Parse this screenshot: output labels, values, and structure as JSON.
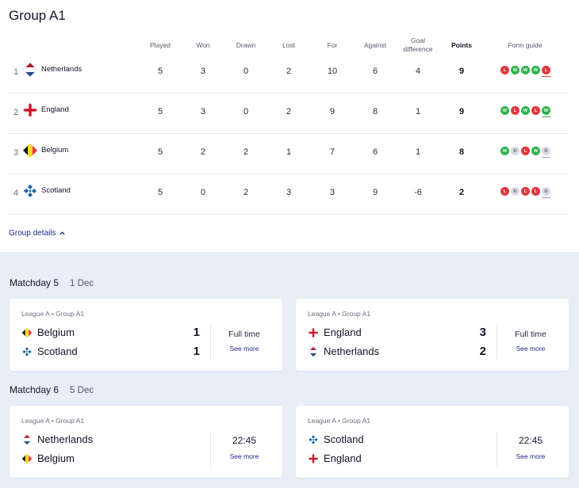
{
  "group": {
    "title": "Group A1",
    "headers": {
      "played": "Played",
      "won": "Won",
      "drawn": "Drawn",
      "lost": "Lost",
      "for": "For",
      "against": "Against",
      "gd_line1": "Goal",
      "gd_line2": "difference",
      "points": "Points",
      "form": "Form guide"
    },
    "rows": [
      {
        "pos": "1",
        "team": "Netherlands",
        "played": "5",
        "won": "3",
        "drawn": "0",
        "lost": "2",
        "for": "10",
        "against": "6",
        "gd": "4",
        "points": "9",
        "form": [
          "L",
          "W",
          "W",
          "W",
          "L"
        ]
      },
      {
        "pos": "2",
        "team": "England",
        "played": "5",
        "won": "3",
        "drawn": "0",
        "lost": "2",
        "for": "9",
        "against": "8",
        "gd": "1",
        "points": "9",
        "form": [
          "W",
          "L",
          "W",
          "L",
          "W"
        ]
      },
      {
        "pos": "3",
        "team": "Belgium",
        "played": "5",
        "won": "2",
        "drawn": "2",
        "lost": "1",
        "for": "7",
        "against": "6",
        "gd": "1",
        "points": "8",
        "form": [
          "W",
          "D",
          "L",
          "W",
          "D"
        ]
      },
      {
        "pos": "4",
        "team": "Scotland",
        "played": "5",
        "won": "0",
        "drawn": "2",
        "lost": "3",
        "for": "3",
        "against": "9",
        "gd": "-6",
        "points": "2",
        "form": [
          "L",
          "D",
          "L",
          "L",
          "D"
        ]
      }
    ],
    "details_label": "Group details"
  },
  "matchdays": [
    {
      "label": "Matchday 5",
      "date": "1 Dec",
      "matches": [
        {
          "league": "League A • Group A1",
          "home": "Belgium",
          "away": "Scotland",
          "home_score": "1",
          "away_score": "1",
          "status": "Full time",
          "see_more": "See more"
        },
        {
          "league": "League A • Group A1",
          "home": "England",
          "away": "Netherlands",
          "home_score": "3",
          "away_score": "2",
          "status": "Full time",
          "see_more": "See more"
        }
      ]
    },
    {
      "label": "Matchday 6",
      "date": "5 Dec",
      "matches": [
        {
          "league": "League A • Group A1",
          "home": "Netherlands",
          "away": "Belgium",
          "home_score": "",
          "away_score": "",
          "status": "22:45",
          "see_more": "See more"
        },
        {
          "league": "League A • Group A1",
          "home": "Scotland",
          "away": "England",
          "home_score": "",
          "away_score": "",
          "status": "22:45",
          "see_more": "See more"
        }
      ]
    }
  ],
  "colors": {
    "win": "#2fb24c",
    "loss": "#e0383e",
    "draw": "#d9dbe6",
    "link": "#1e2a8a",
    "background_lower": "#e9edf8"
  },
  "icons": {
    "netherlands": "netherlands-flag-icon",
    "england": "england-flag-icon",
    "belgium": "belgium-flag-icon",
    "scotland": "scotland-flag-icon",
    "details": "chevron-up-icon"
  }
}
